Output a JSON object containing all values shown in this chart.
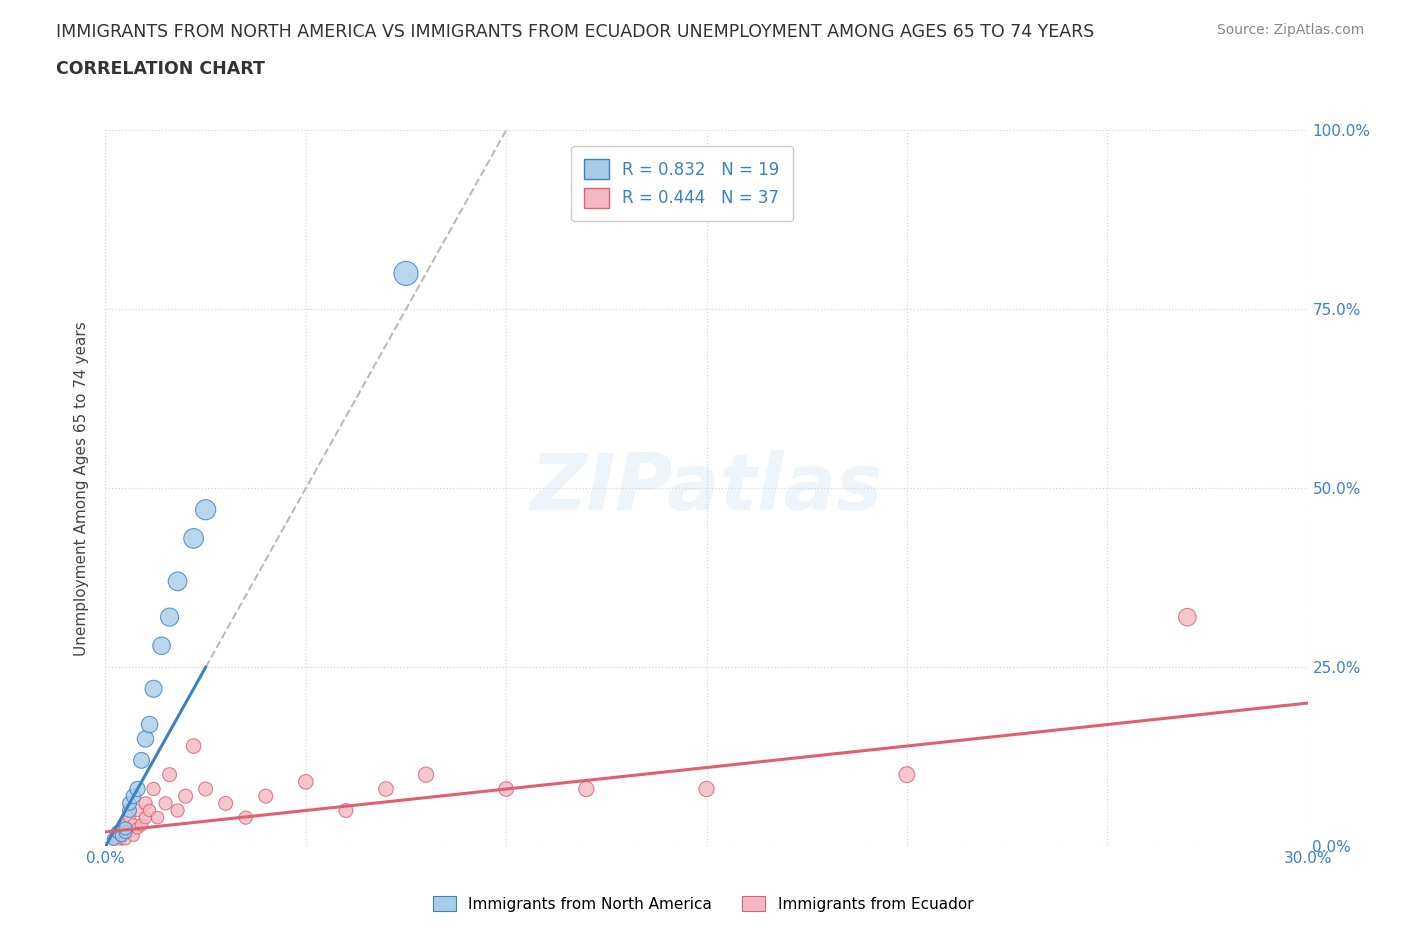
{
  "title_line1": "IMMIGRANTS FROM NORTH AMERICA VS IMMIGRANTS FROM ECUADOR UNEMPLOYMENT AMONG AGES 65 TO 74 YEARS",
  "title_line2": "CORRELATION CHART",
  "source_text": "Source: ZipAtlas.com",
  "ylabel": "Unemployment Among Ages 65 to 74 years",
  "xlim": [
    0.0,
    0.3
  ],
  "ylim": [
    0.0,
    1.0
  ],
  "R_north_america": 0.832,
  "N_north_america": 19,
  "R_ecuador": 0.444,
  "N_ecuador": 37,
  "blue_color": "#a8cce8",
  "pink_color": "#f4b8c4",
  "blue_line_color": "#3a82c3",
  "pink_line_color": "#e06070",
  "dashed_line_color": "#bbbbbb",
  "legend_label_north_america": "Immigrants from North America",
  "legend_label_ecuador": "Immigrants from Ecuador",
  "watermark": "ZIPatlas",
  "north_america_x": [
    0.002,
    0.003,
    0.004,
    0.005,
    0.005,
    0.006,
    0.006,
    0.007,
    0.008,
    0.009,
    0.01,
    0.011,
    0.012,
    0.014,
    0.016,
    0.018,
    0.022,
    0.025,
    0.075
  ],
  "north_america_y": [
    0.01,
    0.02,
    0.015,
    0.02,
    0.025,
    0.05,
    0.06,
    0.07,
    0.08,
    0.12,
    0.15,
    0.17,
    0.22,
    0.28,
    0.32,
    0.37,
    0.43,
    0.47,
    0.8
  ],
  "ecuador_x": [
    0.002,
    0.003,
    0.003,
    0.004,
    0.004,
    0.005,
    0.005,
    0.006,
    0.006,
    0.007,
    0.007,
    0.008,
    0.008,
    0.009,
    0.01,
    0.01,
    0.011,
    0.012,
    0.013,
    0.015,
    0.016,
    0.018,
    0.02,
    0.022,
    0.025,
    0.03,
    0.035,
    0.04,
    0.05,
    0.06,
    0.07,
    0.08,
    0.1,
    0.12,
    0.15,
    0.2,
    0.27
  ],
  "ecuador_y": [
    0.01,
    0.005,
    0.02,
    0.01,
    0.025,
    0.01,
    0.03,
    0.02,
    0.04,
    0.015,
    0.03,
    0.025,
    0.05,
    0.03,
    0.04,
    0.06,
    0.05,
    0.08,
    0.04,
    0.06,
    0.1,
    0.05,
    0.07,
    0.14,
    0.08,
    0.06,
    0.04,
    0.07,
    0.09,
    0.05,
    0.08,
    0.1,
    0.08,
    0.08,
    0.08,
    0.1,
    0.32
  ],
  "blue_dot_sizes": [
    80,
    80,
    80,
    90,
    90,
    100,
    100,
    110,
    120,
    130,
    140,
    140,
    150,
    160,
    170,
    180,
    200,
    210,
    300
  ],
  "pink_dot_sizes": [
    60,
    60,
    70,
    60,
    70,
    70,
    70,
    70,
    70,
    70,
    80,
    70,
    80,
    80,
    80,
    90,
    80,
    90,
    80,
    90,
    100,
    90,
    100,
    110,
    100,
    100,
    90,
    100,
    110,
    100,
    110,
    120,
    110,
    120,
    120,
    130,
    160
  ]
}
